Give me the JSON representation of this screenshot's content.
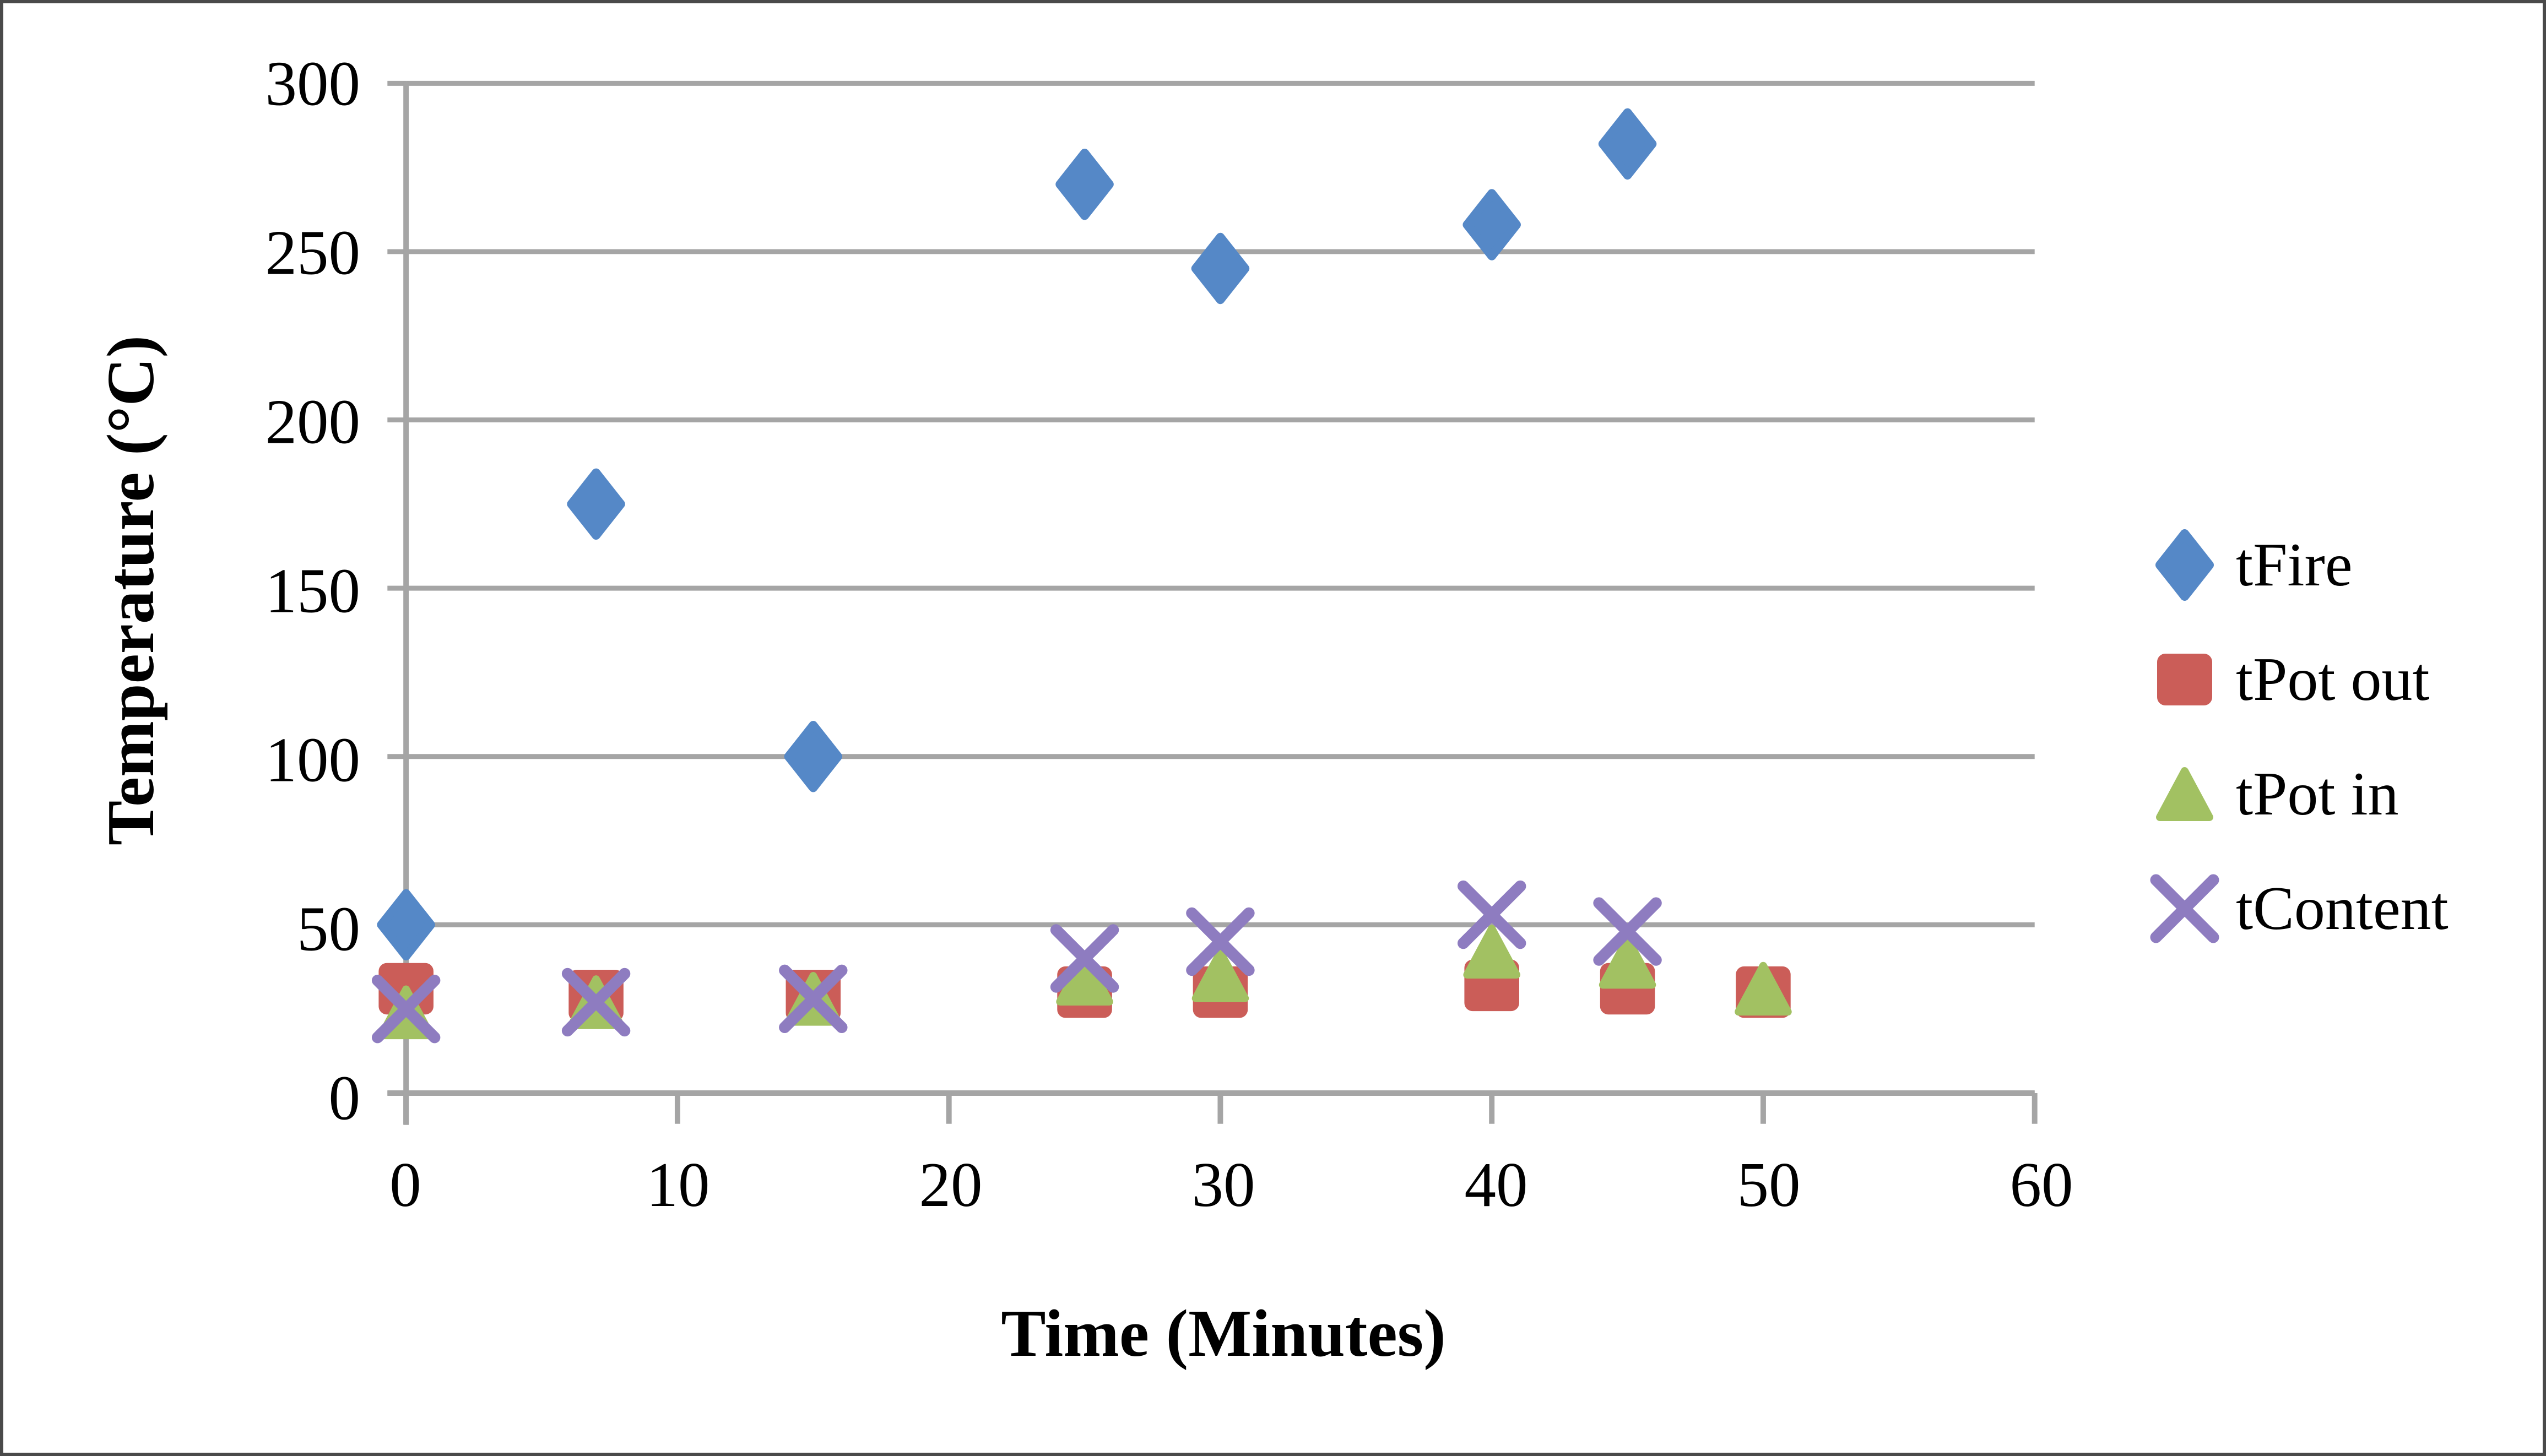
{
  "chart_data": {
    "type": "scatter",
    "title": "",
    "xlabel": "Time (Minutes)",
    "ylabel": "Temperature (°C)",
    "xlim": [
      0,
      60
    ],
    "ylim": [
      0,
      300
    ],
    "x_ticks": [
      0,
      10,
      20,
      30,
      40,
      50,
      60
    ],
    "y_ticks": [
      0,
      50,
      100,
      150,
      200,
      250,
      300
    ],
    "grid": "horizontal-only",
    "legend_position": "right",
    "series": [
      {
        "name": "tFire",
        "marker": "diamond",
        "color": "#5588C7",
        "points": [
          [
            0,
            50
          ],
          [
            7,
            175
          ],
          [
            15,
            100
          ],
          [
            25,
            270
          ],
          [
            30,
            245
          ],
          [
            40,
            258
          ],
          [
            45,
            282
          ]
        ]
      },
      {
        "name": "tPot out",
        "marker": "square",
        "color": "#CB5D58",
        "points": [
          [
            0,
            31
          ],
          [
            7,
            29
          ],
          [
            15,
            29
          ],
          [
            25,
            30
          ],
          [
            30,
            30
          ],
          [
            40,
            32
          ],
          [
            45,
            31
          ],
          [
            50,
            30
          ]
        ]
      },
      {
        "name": "tPot in",
        "marker": "triangle",
        "color": "#A2C162",
        "points": [
          [
            0,
            24
          ],
          [
            7,
            27
          ],
          [
            15,
            28
          ],
          [
            25,
            34
          ],
          [
            30,
            35
          ],
          [
            40,
            42
          ],
          [
            45,
            39
          ],
          [
            50,
            31
          ]
        ]
      },
      {
        "name": "tContent",
        "marker": "x",
        "color": "#8E7CC0",
        "points": [
          [
            0,
            25
          ],
          [
            7,
            27
          ],
          [
            15,
            28
          ],
          [
            25,
            40
          ],
          [
            30,
            45
          ],
          [
            40,
            53
          ],
          [
            45,
            48
          ]
        ]
      }
    ],
    "colors": {
      "gridline": "#A5A5A5",
      "axis": "#A5A5A5",
      "text": "#000000",
      "page_border": "#4a4a4a",
      "background": "#FFFFFF"
    }
  }
}
